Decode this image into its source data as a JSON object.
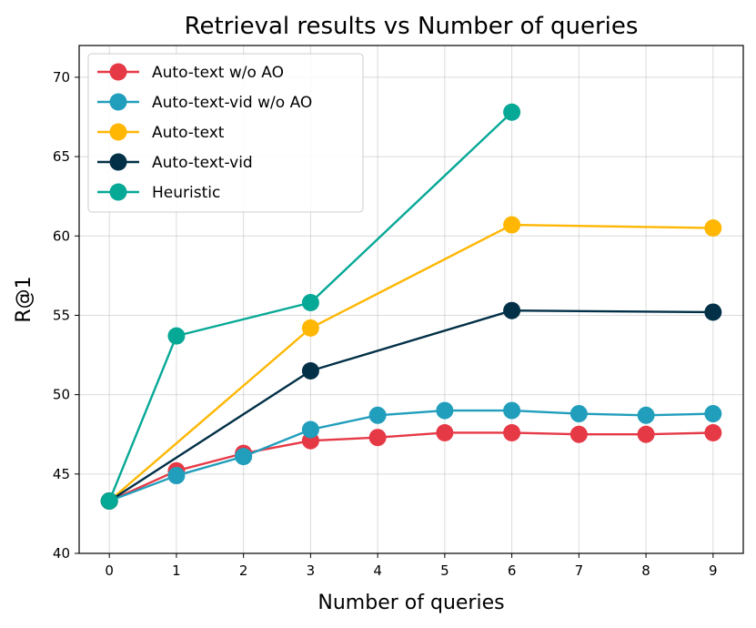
{
  "chart_data": {
    "type": "line",
    "title": "Retrieval results vs Number of queries",
    "xlabel": "Number of queries",
    "ylabel": "R@1",
    "xlim": [
      -0.45,
      9.45
    ],
    "ylim": [
      40,
      72
    ],
    "xticks": [
      0,
      1,
      2,
      3,
      4,
      5,
      6,
      7,
      8,
      9
    ],
    "yticks": [
      40,
      45,
      50,
      55,
      60,
      65,
      70
    ],
    "grid": true,
    "legend_position": "top-left",
    "series": [
      {
        "name": "Auto-text w/o AO",
        "color": "#e63946",
        "x": [
          0,
          1,
          2,
          3,
          4,
          5,
          6,
          7,
          8,
          9
        ],
        "y": [
          43.3,
          45.2,
          46.3,
          47.1,
          47.3,
          47.6,
          47.6,
          47.5,
          47.5,
          47.6
        ]
      },
      {
        "name": "Auto-text-vid w/o AO",
        "color": "#219ebc",
        "x": [
          0,
          1,
          2,
          3,
          4,
          5,
          6,
          7,
          8,
          9
        ],
        "y": [
          43.3,
          44.9,
          46.1,
          47.8,
          48.7,
          49.0,
          49.0,
          48.8,
          48.7,
          48.8
        ]
      },
      {
        "name": "Auto-text",
        "color": "#ffb703",
        "x": [
          0,
          3,
          6,
          9
        ],
        "y": [
          43.3,
          54.2,
          60.7,
          60.5
        ]
      },
      {
        "name": "Auto-text-vid",
        "color": "#023047",
        "x": [
          0,
          3,
          6,
          9
        ],
        "y": [
          43.3,
          51.5,
          55.3,
          55.2
        ]
      },
      {
        "name": "Heuristic",
        "color": "#06a896",
        "x": [
          0,
          1,
          3,
          6
        ],
        "y": [
          43.3,
          53.7,
          55.8,
          67.8
        ]
      }
    ]
  }
}
